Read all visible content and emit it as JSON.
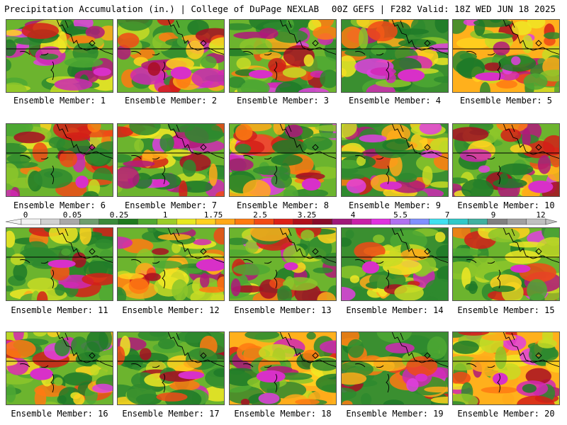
{
  "header": {
    "title": "Precipitation Accumulation (in.) | College of DuPage NEXLAB",
    "valid": "00Z GEFS | F282 Valid: 18Z WED JUN 18 2025"
  },
  "panels": [
    {
      "label": "Ensemble Member: 1"
    },
    {
      "label": "Ensemble Member: 2"
    },
    {
      "label": "Ensemble Member: 3"
    },
    {
      "label": "Ensemble Member: 4"
    },
    {
      "label": "Ensemble Member: 5"
    },
    {
      "label": "Ensemble Member: 6"
    },
    {
      "label": "Ensemble Member: 7"
    },
    {
      "label": "Ensemble Member: 8"
    },
    {
      "label": "Ensemble Member: 9"
    },
    {
      "label": "Ensemble Member: 10"
    },
    {
      "label": "Ensemble Member: 11"
    },
    {
      "label": "Ensemble Member: 12"
    },
    {
      "label": "Ensemble Member: 13"
    },
    {
      "label": "Ensemble Member: 14"
    },
    {
      "label": "Ensemble Member: 15"
    },
    {
      "label": "Ensemble Member: 16"
    },
    {
      "label": "Ensemble Member: 17"
    },
    {
      "label": "Ensemble Member: 18"
    },
    {
      "label": "Ensemble Member: 19"
    },
    {
      "label": "Ensemble Member: 20"
    }
  ],
  "colorbar": {
    "ticks": [
      "0",
      "0.05",
      "0.25",
      "1",
      "1.75",
      "2.5",
      "3.25",
      "4",
      "5.5",
      "7",
      "9",
      "12"
    ],
    "colors": [
      "#f2f2f2",
      "#d0d0d0",
      "#a8a8a8",
      "#6e9e6e",
      "#3a8a3a",
      "#1e7a1e",
      "#50a830",
      "#9ccc28",
      "#e8e820",
      "#ffd020",
      "#ffa818",
      "#ff7a10",
      "#f24a14",
      "#dc2018",
      "#b0101c",
      "#8a0a2a",
      "#a0187a",
      "#c820a8",
      "#e030e0",
      "#b070f0",
      "#8090ff",
      "#40e0f0",
      "#30c8c8",
      "#40b0a0",
      "#808080",
      "#a0a0a0",
      "#c0c0c0"
    ]
  }
}
